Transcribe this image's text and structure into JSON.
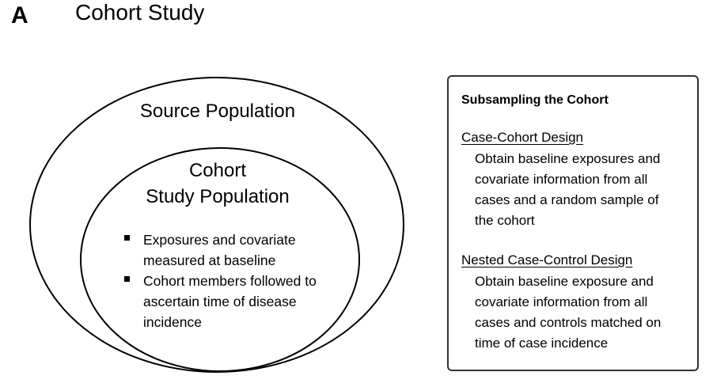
{
  "panel": {
    "letter": "A",
    "title": "Cohort Study"
  },
  "diagram": {
    "outer_label": "Source Population",
    "inner_label_lines": [
      "Cohort",
      "Study Population"
    ],
    "bullets": [
      [
        "Exposures and covariate",
        "measured at baseline"
      ],
      [
        "Cohort members followed to",
        "ascertain time of disease",
        "incidence"
      ]
    ]
  },
  "sidebox": {
    "heading": "Subsampling the Cohort",
    "designs": [
      {
        "title": "Case-Cohort Design",
        "lines": [
          "Obtain baseline exposures and",
          "covariate information from all",
          "cases and a random sample of",
          "the cohort"
        ]
      },
      {
        "title": "Nested Case-Control Design",
        "lines": [
          "Obtain baseline exposure and",
          "covariate information from all",
          "cases and controls matched on",
          "time of case incidence"
        ]
      }
    ]
  }
}
